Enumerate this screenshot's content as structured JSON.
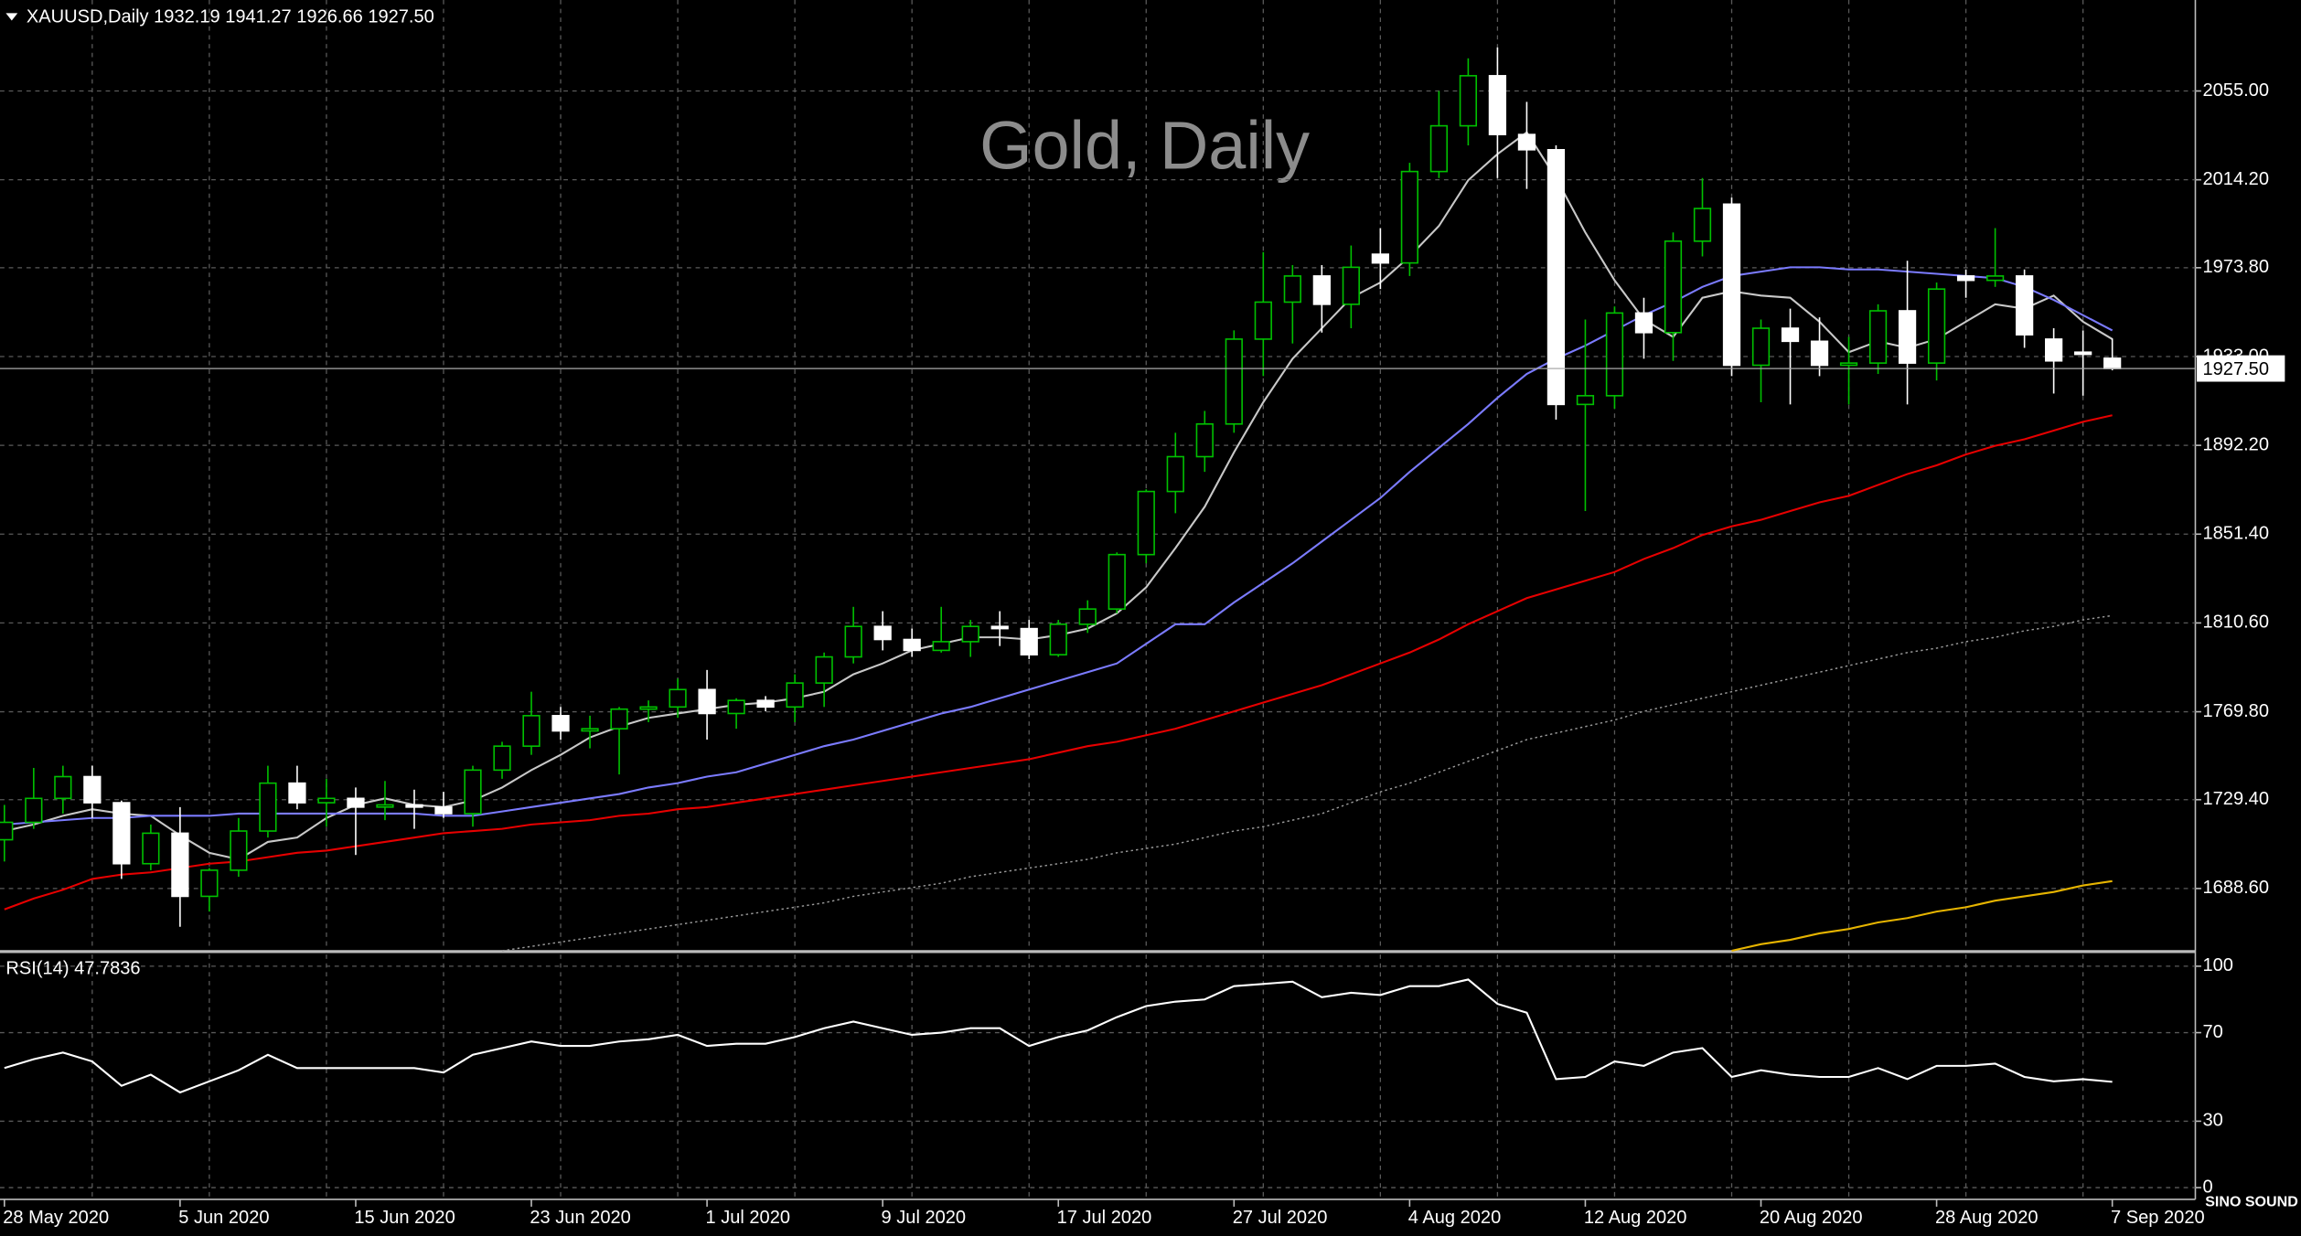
{
  "chart_data": [
    {
      "type": "candlestick",
      "title": "Gold, Daily",
      "header": "XAUUSD,Daily  1932.19 1941.27 1926.66 1927.50",
      "categories": [
        "28 May 2020",
        null,
        null,
        null,
        null,
        null,
        "5 Jun 2020",
        null,
        null,
        null,
        null,
        null,
        "15 Jun 2020",
        null,
        null,
        null,
        null,
        null,
        "23 Jun 2020",
        null,
        null,
        null,
        null,
        null,
        "1 Jul 2020",
        null,
        null,
        null,
        null,
        null,
        "9 Jul 2020",
        null,
        null,
        null,
        null,
        null,
        "17 Jul 2020",
        null,
        null,
        null,
        null,
        null,
        "27 Jul 2020",
        null,
        null,
        null,
        null,
        null,
        "4 Aug 2020",
        null,
        null,
        null,
        null,
        null,
        "12 Aug 2020",
        null,
        null,
        null,
        null,
        null,
        "20 Aug 2020",
        null,
        null,
        null,
        null,
        null,
        "28 Aug 2020",
        null,
        null,
        null,
        null,
        null,
        "7 Sep 2020"
      ],
      "open": [
        1711,
        1719,
        1730,
        1740,
        1728,
        1700,
        1714,
        1685,
        1697,
        1715,
        1737,
        1728,
        1730,
        1726,
        1727,
        1726,
        1723,
        1743,
        1754,
        1768,
        1761,
        1762,
        1771,
        1772,
        1780,
        1769,
        1775,
        1772,
        1783,
        1795,
        1809,
        1803,
        1798,
        1802,
        1809,
        1808,
        1796,
        1810,
        1817,
        1842,
        1871,
        1887,
        1902,
        1941,
        1958,
        1970,
        1957,
        1980,
        1976,
        2018,
        2039,
        2062,
        2035,
        2028,
        1911,
        1915,
        1953,
        1944,
        1986,
        2003,
        1929,
        1946,
        1940,
        1929,
        1930,
        1954,
        1930,
        1970,
        1968,
        1970,
        1941,
        1935,
        1932.19
      ],
      "high": [
        1727,
        1744,
        1745,
        1745,
        1729,
        1718,
        1726,
        1698,
        1721,
        1745,
        1745,
        1739,
        1735,
        1738,
        1734,
        1733,
        1745,
        1756,
        1779,
        1772,
        1768,
        1772,
        1775,
        1785,
        1789,
        1776,
        1777,
        1787,
        1797,
        1818,
        1816,
        1808,
        1818,
        1812,
        1816,
        1812,
        1812,
        1821,
        1843,
        1872,
        1898,
        1908,
        1945,
        1981,
        1975,
        1975,
        1984,
        1992,
        2022,
        2055,
        2070,
        2075,
        2050,
        2030,
        1950,
        1956,
        1960,
        1990,
        2015,
        2006,
        1950,
        1955,
        1951,
        1942,
        1957,
        1977,
        1967,
        1973,
        1992,
        1973,
        1946,
        1945,
        1941.27
      ],
      "low": [
        1701,
        1716,
        1723,
        1721,
        1693,
        1697,
        1671,
        1678,
        1694,
        1712,
        1725,
        1717,
        1704,
        1720,
        1716,
        1721,
        1717,
        1739,
        1750,
        1757,
        1753,
        1741,
        1765,
        1767,
        1757,
        1762,
        1770,
        1765,
        1772,
        1792,
        1798,
        1795,
        1797,
        1795,
        1800,
        1794,
        1795,
        1806,
        1815,
        1838,
        1861,
        1880,
        1898,
        1924,
        1939,
        1944,
        1946,
        1964,
        1970,
        2015,
        2030,
        2015,
        2010,
        1904,
        1862,
        1909,
        1932,
        1931,
        1979,
        1924,
        1912,
        1911,
        1924,
        1911,
        1925,
        1911,
        1922,
        1960,
        1965,
        1937,
        1916,
        1915,
        1926.66
      ],
      "close": [
        1719,
        1730,
        1740,
        1728,
        1700,
        1714,
        1685,
        1697,
        1715,
        1737,
        1728,
        1730,
        1726,
        1727,
        1726,
        1723,
        1743,
        1754,
        1768,
        1761,
        1762,
        1771,
        1772,
        1780,
        1769,
        1775,
        1772,
        1783,
        1795,
        1809,
        1803,
        1798,
        1802,
        1809,
        1808,
        1796,
        1810,
        1817,
        1842,
        1871,
        1887,
        1902,
        1941,
        1958,
        1970,
        1957,
        1974,
        1976,
        2018,
        2039,
        2062,
        2035,
        2028,
        1911,
        1915,
        1953,
        1944,
        1986,
        2001,
        1929,
        1946,
        1940,
        1929,
        1930,
        1954,
        1930,
        1964,
        1968,
        1970,
        1943,
        1931,
        1934,
        1927.5
      ],
      "up_color": "#00c000",
      "down_color": "#ffffff",
      "series": [
        {
          "color": "#c8c8c8",
          "style": "solid",
          "values": [
            1715,
            1718,
            1722,
            1725,
            1723,
            1722,
            1713,
            1705,
            1702,
            1710,
            1712,
            1721,
            1727,
            1730,
            1727,
            1726,
            1729,
            1735,
            1743,
            1750,
            1758,
            1763,
            1767,
            1769,
            1771,
            1773,
            1774,
            1776,
            1779,
            1787,
            1792,
            1798,
            1801,
            1804,
            1804,
            1803,
            1805,
            1808,
            1815,
            1827,
            1845,
            1864,
            1889,
            1912,
            1932,
            1946,
            1960,
            1967,
            1979,
            1993,
            2014,
            2026,
            2036,
            2015,
            1990,
            1968,
            1950,
            1942,
            1960,
            1963,
            1961,
            1960,
            1949,
            1935,
            1940,
            1937,
            1941,
            1949,
            1957,
            1955,
            1961,
            1949,
            1941
          ]
        },
        {
          "color": "#7b7bff",
          "style": "solid",
          "values": [
            1718,
            1719,
            1720,
            1721,
            1721,
            1722,
            1722,
            1722,
            1723,
            1723,
            1723,
            1723,
            1723,
            1723,
            1723,
            1722,
            1722,
            1724,
            1726,
            1728,
            1730,
            1732,
            1735,
            1737,
            1740,
            1742,
            1746,
            1750,
            1754,
            1757,
            1761,
            1765,
            1769,
            1772,
            1776,
            1780,
            1784,
            1788,
            1792,
            1801,
            1810,
            1810,
            1820,
            1829,
            1838,
            1848,
            1858,
            1868,
            1880,
            1891,
            1902,
            1914,
            1925,
            1932,
            1938,
            1945,
            1952,
            1958,
            1965,
            1970,
            1972,
            1974,
            1974,
            1973,
            1973,
            1972,
            1971,
            1970,
            1969,
            1965,
            1959,
            1952,
            1945
          ]
        },
        {
          "color": "#e60000",
          "style": "solid",
          "values": [
            1679,
            1684,
            1688,
            1693,
            1695,
            1696,
            1698,
            1700,
            1701,
            1703,
            1705,
            1706,
            1708,
            1710,
            1712,
            1714,
            1715,
            1716,
            1718,
            1719,
            1720,
            1722,
            1723,
            1725,
            1726,
            1728,
            1730,
            1732,
            1734,
            1736,
            1738,
            1740,
            1742,
            1744,
            1746,
            1748,
            1751,
            1754,
            1756,
            1759,
            1762,
            1766,
            1770,
            1774,
            1778,
            1782,
            1787,
            1792,
            1797,
            1803,
            1810,
            1816,
            1822,
            1826,
            1830,
            1834,
            1840,
            1845,
            1851,
            1855,
            1858,
            1862,
            1866,
            1869,
            1874,
            1879,
            1883,
            1888,
            1892,
            1895,
            1899,
            1903,
            1906
          ]
        },
        {
          "color": "#9a9a9a",
          "style": "dotted",
          "values": [
            null,
            null,
            null,
            null,
            null,
            null,
            null,
            null,
            null,
            null,
            null,
            null,
            null,
            null,
            null,
            null,
            null,
            1660,
            1662,
            1664,
            1666,
            1668,
            1670,
            1672,
            1674,
            1676,
            1678,
            1680,
            1682,
            1685,
            1687,
            1689,
            1691,
            1694,
            1696,
            1698,
            1700,
            1702,
            1705,
            1707,
            1709,
            1712,
            1715,
            1717,
            1720,
            1723,
            1728,
            1733,
            1737,
            1742,
            1747,
            1752,
            1757,
            1760,
            1763,
            1766,
            1770,
            1773,
            1776,
            1779,
            1782,
            1785,
            1788,
            1791,
            1794,
            1797,
            1799,
            1802,
            1804,
            1807,
            1809,
            1812,
            1814
          ]
        },
        {
          "color": "#e6b400",
          "style": "solid",
          "values": [
            null,
            null,
            null,
            null,
            null,
            null,
            null,
            null,
            null,
            null,
            null,
            null,
            null,
            null,
            null,
            null,
            null,
            null,
            null,
            null,
            null,
            null,
            null,
            null,
            null,
            null,
            null,
            null,
            null,
            null,
            null,
            null,
            null,
            null,
            null,
            null,
            null,
            null,
            null,
            null,
            null,
            null,
            null,
            null,
            null,
            null,
            null,
            null,
            null,
            null,
            null,
            null,
            null,
            null,
            null,
            null,
            null,
            null,
            null,
            1660,
            1663,
            1665,
            1668,
            1670,
            1673,
            1675,
            1678,
            1680,
            1683,
            1685,
            1687,
            1690,
            1692
          ]
        }
      ],
      "ylim": [
        1660.3,
        2096.8
      ],
      "yticks": [
        {
          "value": 2055,
          "label": "2055.00"
        },
        {
          "value": 2014.2,
          "label": "2014.20"
        },
        {
          "value": 1973.8,
          "label": "1973.80"
        },
        {
          "value": 1933,
          "label": "1933.00"
        },
        {
          "value": 1892.2,
          "label": "1892.20"
        },
        {
          "value": 1851.4,
          "label": "1851.40"
        },
        {
          "value": 1810.6,
          "label": "1810.60"
        },
        {
          "value": 1769.8,
          "label": "1769.80"
        },
        {
          "value": 1729.4,
          "label": "1729.40"
        },
        {
          "value": 1688.6,
          "label": "1688.60"
        }
      ],
      "current_price": {
        "value": 1927.5,
        "label": "1927.50"
      },
      "grid": true
    },
    {
      "type": "line",
      "title": "RSI(14) 47.7836",
      "color": "#ffffff",
      "values": [
        54,
        58,
        61,
        57,
        46,
        51,
        43,
        48,
        53,
        60,
        54,
        54,
        54,
        54,
        54,
        52,
        60,
        63,
        66,
        64,
        64,
        66,
        67,
        69,
        64,
        65,
        65,
        68,
        72,
        75,
        72,
        69,
        70,
        72,
        72,
        64,
        68,
        71,
        77,
        82,
        84,
        85,
        91,
        92,
        93,
        86,
        88,
        87,
        91,
        91,
        94,
        83,
        79,
        49,
        50,
        57,
        55,
        61,
        63,
        50,
        53,
        51,
        50,
        50,
        54,
        49,
        55,
        55,
        56,
        50,
        48,
        49,
        47.7836
      ],
      "ylim": [
        0,
        100
      ],
      "yticks": [
        100,
        70,
        30,
        0
      ],
      "grid": true
    }
  ],
  "watermark": "SINO SOUND"
}
